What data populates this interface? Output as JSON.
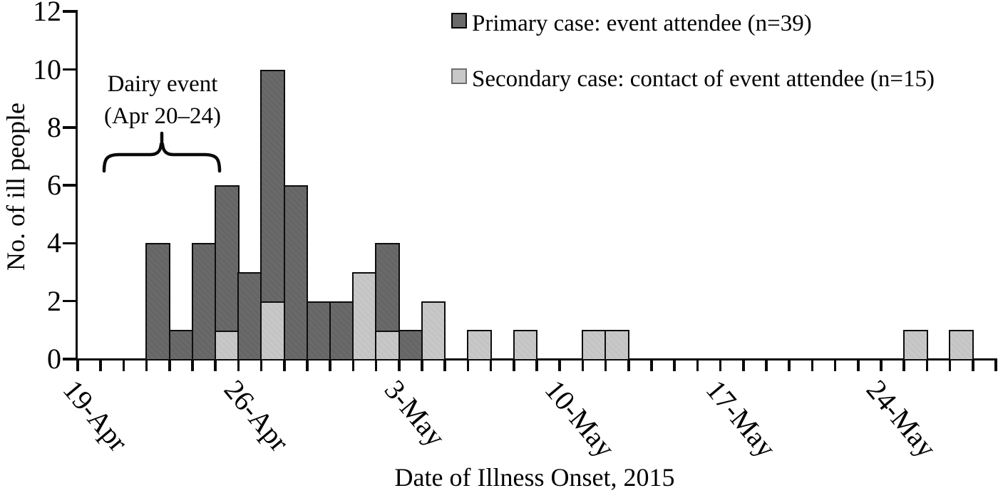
{
  "colors": {
    "primary_bar_fill": "#6a6a6a",
    "secondary_bar_fill": "#c8c8c8",
    "bar_border": "#0d0d0d",
    "secondary_legend_border": "#6e6e6e",
    "axis": "#0a0a0a",
    "background": "#ffffff"
  },
  "legend": {
    "items": [
      {
        "label": "Primary case: event attendee (n=39)",
        "swatch": "dark-gray"
      },
      {
        "label": "Secondary case: contact of event attendee (n=15)",
        "swatch": "light-gray"
      }
    ]
  },
  "chart_data": {
    "type": "bar",
    "stacked": true,
    "title": "",
    "xlabel": "Date of Illness Onset, 2015",
    "ylabel": "No. of ill people",
    "ylim": [
      0,
      12
    ],
    "yticks": [
      0,
      2,
      4,
      6,
      8,
      10,
      12
    ],
    "grid": "off",
    "legend_position": "top-right",
    "x_axis": {
      "unit": "1 day per slot",
      "total_slots": 40,
      "labels": [
        {
          "text": "19-Apr",
          "slot": 1
        },
        {
          "text": "26-Apr",
          "slot": 8
        },
        {
          "text": "3-May",
          "slot": 15
        },
        {
          "text": "10-May",
          "slot": 22
        },
        {
          "text": "17-May",
          "slot": 29
        },
        {
          "text": "24-May",
          "slot": 36
        }
      ]
    },
    "series": [
      {
        "name": "Primary case: event attendee (n=39)",
        "n": 39,
        "color": "#6a6a6a",
        "stack_position": "top"
      },
      {
        "name": "Secondary case: contact of event attendee (n=15)",
        "n": 15,
        "color": "#c8c8c8",
        "stack_position": "bottom"
      }
    ],
    "bars": [
      {
        "slot": 4,
        "date": "22-Apr",
        "secondary": 0,
        "primary": 4
      },
      {
        "slot": 5,
        "date": "23-Apr",
        "secondary": 0,
        "primary": 1
      },
      {
        "slot": 6,
        "date": "24-Apr",
        "secondary": 0,
        "primary": 4
      },
      {
        "slot": 7,
        "date": "25-Apr",
        "secondary": 1,
        "primary": 5
      },
      {
        "slot": 8,
        "date": "26-Apr",
        "secondary": 0,
        "primary": 3
      },
      {
        "slot": 9,
        "date": "27-Apr",
        "secondary": 2,
        "primary": 8
      },
      {
        "slot": 10,
        "date": "28-Apr",
        "secondary": 0,
        "primary": 6
      },
      {
        "slot": 11,
        "date": "29-Apr",
        "secondary": 0,
        "primary": 2
      },
      {
        "slot": 12,
        "date": "30-Apr",
        "secondary": 0,
        "primary": 2
      },
      {
        "slot": 13,
        "date": "1-May",
        "secondary": 3,
        "primary": 0
      },
      {
        "slot": 14,
        "date": "2-May",
        "secondary": 1,
        "primary": 3
      },
      {
        "slot": 15,
        "date": "3-May",
        "secondary": 0,
        "primary": 1
      },
      {
        "slot": 16,
        "date": "4-May",
        "secondary": 2,
        "primary": 0
      },
      {
        "slot": 18,
        "date": "6-May",
        "secondary": 1,
        "primary": 0
      },
      {
        "slot": 20,
        "date": "8-May",
        "secondary": 1,
        "primary": 0
      },
      {
        "slot": 23,
        "date": "11-May",
        "secondary": 1,
        "primary": 0
      },
      {
        "slot": 24,
        "date": "12-May",
        "secondary": 1,
        "primary": 0
      },
      {
        "slot": 37,
        "date": "25-May",
        "secondary": 1,
        "primary": 0
      },
      {
        "slot": 39,
        "date": "27-May",
        "secondary": 1,
        "primary": 0
      }
    ],
    "annotation": {
      "text_line1": "Dairy event",
      "text_line2": "(Apr 20–24)",
      "brace_span_slots": [
        2,
        6
      ]
    }
  }
}
